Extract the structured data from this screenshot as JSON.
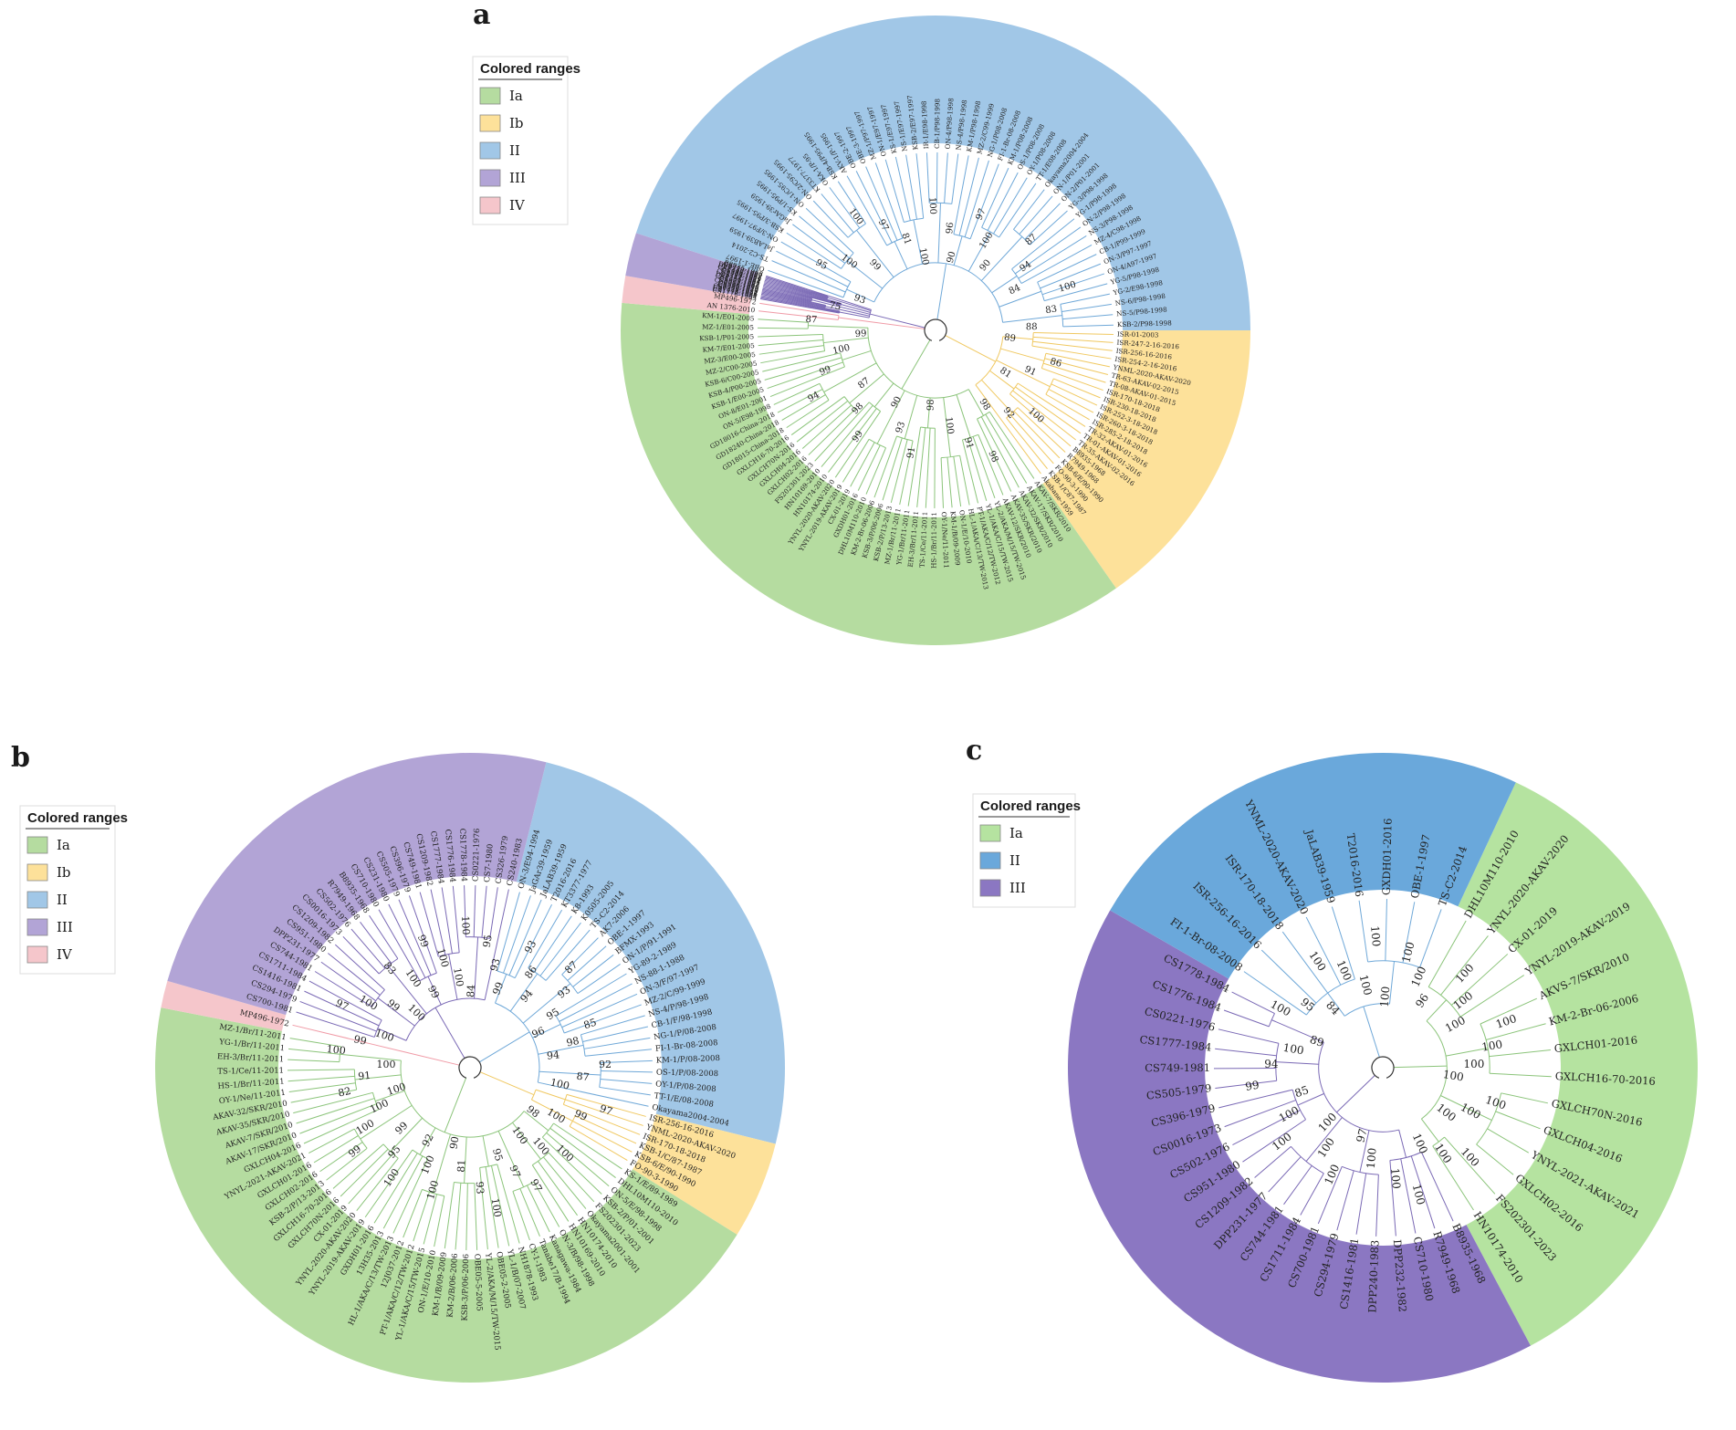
{
  "figure": {
    "legend_title": "Colored ranges",
    "clade_colors": {
      "Ia": "#b5dca0",
      "Ib": "#fde19a",
      "II": "#a1c7e7",
      "III": "#b2a4d6",
      "IV": "#f5c6cb"
    },
    "clade_colors_c": {
      "Ia": "#b5e3a0",
      "II": "#6aa8db",
      "III": "#8b77c2"
    },
    "branch_colors": {
      "Ia": "#8bc47a",
      "Ib": "#f0c860",
      "II": "#6fa8d8",
      "III": "#7a69b5",
      "IV": "#f09aa6"
    },
    "highlight_color": "#e0482a",
    "highlight_label": "FS202301-2023"
  },
  "panels": [
    {
      "id": "a",
      "label": "a",
      "legend": [
        "Ia",
        "Ib",
        "II",
        "III",
        "IV"
      ],
      "sectors": [
        {
          "clade": "II",
          "from": -72,
          "to": 90
        },
        {
          "clade": "Ib",
          "from": 90,
          "to": 145
        },
        {
          "clade": "Ia",
          "from": 145,
          "to": 275
        },
        {
          "clade": "IV",
          "from": 275,
          "to": 280
        },
        {
          "clade": "III",
          "from": 280,
          "to": 288
        }
      ],
      "leaves": [
        {
          "clade": "II",
          "labels": [
            "OBE-1-1997",
            "TS-C2-2014",
            "JaLAB39-1959",
            "ON-3/F97-1997",
            "KSB-3/P95-1995",
            "JaGAr39-1959",
            "KS-1/P95-1995",
            "ON-1/C95-1995",
            "ON-2/C95-1995",
            "KT3377-1977",
            "OKA-1/P-95",
            "KSB-4/P95-1995",
            "AKV-1/P-1995",
            "OBE-2-1997",
            "OBE-3-1997",
            "MZ-1/P97-1997",
            "ON-1/E97-1997",
            "KS-1/E97-1997",
            "NS-1/E97-1997",
            "KSB-2/E97-1997",
            "IR-1/E98-1998",
            "CB-1/P98-1998",
            "ON-4/P98-1998",
            "NS-4/P98-1998",
            "KM-1/P98-1998",
            "MZ-2/C99-1999",
            "NG-1/P08-2008",
            "FI-1-Br-08-2008",
            "KM-1/P08-2008",
            "OS-1/P08-2008",
            "OY-1/P08-2008",
            "TT-1/E08-2008",
            "Okayama2004-2004",
            "ON-1/P01-2001",
            "ON-2/P01-2001",
            "YG-3/P98-1998",
            "YG-1/P98-1998",
            "ON-2/P98-1998",
            "NS-3/P98-1998",
            "MZ-4/C98-1998",
            "CB-1/P99-1999",
            "ON-3/P97-1997",
            "ON-4/A97-1997",
            "YG-5/P98-1998",
            "YG-2/E98-1998",
            "NS-6/P98-1998",
            "NS-5/P98-1998",
            "KSB-2/P98-1998"
          ]
        },
        {
          "clade": "Ib",
          "labels": [
            "ISR-01-2003",
            "ISR-247-2-16-2016",
            "ISR-256-16-2016",
            "ISR-254-2-16-2016",
            "YNML-2020-AKAV-2020",
            "TR-63-AKAV-02-2015",
            "TR-08-AKAV-01-2015",
            "ISR-170-18-2018",
            "ISR-230-18-2018",
            "ISR-252-3-18-2018",
            "ISR-260-3-18-2018",
            "ISR-285-2-18-2018",
            "TR-32-AKAV-01-2016",
            "TR-01-AKAV-01-2016",
            "TR-35-AKAV-02-2016",
            "B8935-1968",
            "R7949-1968",
            "KSB-6/E/90-1990",
            "FO-90-3-1990",
            "KSB-1/C87-1987",
            "Akabane-1959"
          ]
        },
        {
          "clade": "Ia",
          "labels": [
            "AKAV-7/SKR/2010",
            "AKAV-17/SKR/2010",
            "AKAV-32/SKR/2010",
            "AKAV-35/SKR/2010",
            "AKAV-12/SKR/2010",
            "YL-2/AKA/M/15/TW-2015",
            "YL-1/AKA/C/15/TW-2015",
            "PT-1/AKA/C/12/TW-2012",
            "HL-1/AKA/C/13/TW-2013",
            "ON-1/E/10-2010",
            "KM-1/B/09-2009",
            "OY-1/Ne/11-2011",
            "HS-1/Br/11-2011",
            "TS-1/Ce/11-2011",
            "EH-3/Br/11-2011",
            "YG-1/Br/11-2011",
            "MZ-1/Br/11-2011",
            "KSB-2/P/13-2013",
            "KSB-3/P/06-2006",
            "KM-2-Br-06-2006",
            "DHL10M110-2010",
            "GXDH01-2016",
            "CX-01-2019",
            "YNYL-2019-AKAV-2019",
            "YNYL-2020-AKAV-2020",
            "HN10174-2010",
            "HN10169-2010",
            "FS202301-2023",
            "GXLCH02-2016",
            "GXLCH04-2016",
            "GXLCH70N-2016",
            "GXLCH16-70-2016",
            "GD18015-China-2018",
            "GD18240-China-2018",
            "GD18016-China-2018",
            "ON-5/E98-1998",
            "ON-8/E01-2001",
            "KSB-1/E00-2005",
            "KSB-4/P00-2005",
            "KSB-6/C00-2005",
            "MZ-2/C00-2005",
            "MZ-3/E00-2005",
            "KM-7/E01-2005",
            "KSB-1/P01-2005",
            "MZ-1/E01-2005",
            "KM-1/E01-2005"
          ]
        },
        {
          "clade": "IV",
          "labels": [
            "AN 1376-2010",
            "MP496-1972"
          ]
        },
        {
          "clade": "III",
          "labels": [
            "CS1776-1984",
            "CS1777-1984",
            "CS1778-1984",
            "CS0221-1976",
            "CS749-1981",
            "CS505-1979",
            "CS396-1979",
            "CS0016-1973",
            "CS502-1976",
            "CS951-1980",
            "CS1209-1982",
            "DPP231-1977",
            "CS744-1981",
            "CS1711-1984",
            "CS700-1981",
            "CS294-1979",
            "CS1416-1981",
            "DPP240-1983",
            "DPP232-1982",
            "CS710-1980",
            "B8935-1968"
          ]
        }
      ],
      "bootstraps": [
        "90",
        "97",
        "100",
        "90",
        "87",
        "94",
        "84",
        "100",
        "83",
        "88",
        "89",
        "86",
        "91",
        "81",
        "100",
        "92",
        "98",
        "98",
        "91",
        "100",
        "98",
        "91",
        "93",
        "90",
        "99",
        "98",
        "87",
        "94",
        "99",
        "100",
        "99",
        "87",
        "75",
        "93",
        "95",
        "100",
        "99",
        "100",
        "97",
        "81",
        "100",
        "100",
        "96"
      ]
    },
    {
      "id": "b",
      "label": "b",
      "legend": [
        "Ia",
        "Ib",
        "II",
        "III",
        "IV"
      ],
      "sectors": [
        {
          "clade": "II",
          "from": 14,
          "to": 104
        },
        {
          "clade": "Ib",
          "from": 104,
          "to": 122
        },
        {
          "clade": "Ia",
          "from": 122,
          "to": 281
        },
        {
          "clade": "IV",
          "from": 281,
          "to": 286
        },
        {
          "clade": "III",
          "from": 286,
          "to": 374
        }
      ],
      "leaves": [
        {
          "clade": "II",
          "labels": [
            "ON-3/E94-1994",
            "JaGAr39-1959",
            "JaLAB39-1959",
            "T2016-2016",
            "KT3377-1977",
            "K8-1993",
            "K0505-2005",
            "TS-C2-2014",
            "AK7-2006",
            "OBE-1-1997",
            "BFMX-1993",
            "ON-1/P/91-1991",
            "YG-89-2-1989",
            "NS-88-1-1988",
            "ON-3/F/97-1997",
            "MZ-2/C/99-1999",
            "NS-4/P/98-1998",
            "CB-1/F/98-1998",
            "NG-1/P/08-2008",
            "FI-1-Br-08-2008",
            "KM-1/P/08-2008",
            "OS-1/P/08-2008",
            "OY-1/P/08-2008",
            "TT-1/E/08-2008",
            "Okayama2004-2004"
          ]
        },
        {
          "clade": "Ib",
          "labels": [
            "ISR-256-16-2016",
            "YNML-2020-AKAV-2020",
            "ISR-170-18-2018",
            "KSB-1/C/87-1987",
            "KSB-6/E/90-1990",
            "FO-90-3-1990"
          ]
        },
        {
          "clade": "Ia",
          "labels": [
            "KS-1/E/89-1989",
            "DHL10M110-2010",
            "ON-5/E/98-1998",
            "KSB-2/P/01-2001",
            "FS202301-2023",
            "Okayama2001-2001",
            "HN10174-2010",
            "HN10169-2010",
            "ON-3/B/98-1998",
            "Kanagawa-1984",
            "Tanabe17/B-1994",
            "CY-1-1983",
            "NH1878-1993",
            "YL-1/B/07-2007",
            "OBE05-2-2005",
            "YL-2/AKA/M/15/TW-2015",
            "OBE05-5-2005",
            "KSB-3/P/06-2006",
            "KM-2/B/06-2006",
            "KM-1/B/09-2009",
            "ON-1/E/10-2010",
            "YL-1/AKA/C/15/TW-2015",
            "PT-1/AKA/C/12/TW-2012",
            "12J037-2012",
            "HL-1/AKA/C/13/TW-2013",
            "13H35-2013",
            "GXDH01-2016",
            "YNYL-2019-AKAV-2019",
            "YNYL-2020-AKAV-2020",
            "CX-01-2019",
            "GXLCH70N-2016",
            "GXLCH16-70-2016",
            "KSB-2/P/13-2013",
            "GXLCH02-2016",
            "GXLCH01-2016",
            "YNYL-2021-AKAV-2021",
            "GXLCH04-2016",
            "AKAV-17/SKR/2010",
            "AKAV-7/SKR/2010",
            "AKAV-35/SKR/2010",
            "AKAV-32/SKR/2010",
            "OY-1/Ne/11-2011",
            "HS-1/Br/11-2011",
            "TS-1/Ce/11-2011",
            "EH-3/Br/11-2011",
            "YG-1/Br/11-2011",
            "MZ-1/Br/11-2011"
          ]
        },
        {
          "clade": "IV",
          "labels": [
            "MP496-1972"
          ]
        },
        {
          "clade": "III",
          "labels": [
            "CS700-1981",
            "CS294-1979",
            "CS1416-1981",
            "CS1711-1984",
            "CS744-1981",
            "DPP231-1977",
            "CS951-1980",
            "CS1209-1982",
            "CS0016-1973",
            "CS502-1976",
            "R7949-1968",
            "B8935-1968",
            "CS710-1980",
            "CS231-1980",
            "CS505-1979",
            "CS396-1979",
            "CS749-1981",
            "CS1209-1982",
            "CS1777-1984",
            "CS1776-1984",
            "CS1778-1984",
            "CS0221-1976",
            "CS7-1980",
            "CS326-1979",
            "CS240-1983"
          ]
        }
      ],
      "bootstraps": [
        "84",
        "95",
        "93",
        "99",
        "93",
        "86",
        "94",
        "87",
        "93",
        "95",
        "96",
        "85",
        "98",
        "94",
        "92",
        "87",
        "100",
        "97",
        "99",
        "100",
        "98",
        "100",
        "100",
        "100",
        "97",
        "97",
        "95",
        "100",
        "93",
        "81",
        "90",
        "100",
        "100",
        "92",
        "100",
        "95",
        "99",
        "99",
        "100",
        "100",
        "100",
        "82",
        "91",
        "100",
        "100",
        "99",
        "100",
        "97",
        "100",
        "99",
        "100",
        "83",
        "100",
        "99",
        "99",
        "100",
        "100",
        "100"
      ]
    },
    {
      "id": "c",
      "label": "c",
      "legend": [
        "Ia",
        "II",
        "III"
      ],
      "sectors": [
        {
          "clade": "Ia",
          "from": 25,
          "to": 152
        },
        {
          "clade": "III",
          "from": 152,
          "to": 300
        },
        {
          "clade": "II",
          "from": 300,
          "to": 385
        }
      ],
      "leaves": [
        {
          "clade": "Ia",
          "labels": [
            "DHL10M110-2010",
            "YNYL-2020-AKAV-2020",
            "CX-01-2019",
            "YNYL-2019-AKAV-2019",
            "AKVS-7/SKR/2010",
            "KM-2-Br-06-2006",
            "GXLCH01-2016",
            "GXLCH16-70-2016",
            "GXLCH70N-2016",
            "GXLCH04-2016",
            "YNYL-2021-AKAV-2021",
            "GXLCH02-2016",
            "FS202301-2023",
            "HN10174-2010"
          ]
        },
        {
          "clade": "III",
          "labels": [
            "B8935-1968",
            "R7949-1968",
            "CS710-1980",
            "DPP232-1982",
            "DPP240-1983",
            "CS1416-1981",
            "CS294-1979",
            "CS700-1981",
            "CS1711-1984",
            "CS744-1981",
            "DPP231-1977",
            "CS1209-1982",
            "CS951-1980",
            "CS502-1976",
            "CS0016-1973",
            "CS396-1979",
            "CS505-1979",
            "CS749-1981",
            "CS1777-1984",
            "CS0221-1976",
            "CS1776-1984",
            "CS1778-1984"
          ]
        },
        {
          "clade": "II",
          "labels": [
            "FI-1-Br-08-2008",
            "ISR-256-16-2016",
            "ISR-170-18-2018",
            "YNML-2020-AKAV-2020",
            "JaLAB39-1959",
            "T2016-2016",
            "GXDH01-2016",
            "OBE-1-1997",
            "TS-C2-2014"
          ]
        }
      ],
      "bootstraps": [
        "100",
        "100",
        "100",
        "96",
        "100",
        "100",
        "100",
        "100",
        "100",
        "100",
        "100",
        "100",
        "100",
        "100",
        "100",
        "100",
        "100",
        "100",
        "100",
        "100",
        "97",
        "100",
        "100",
        "100",
        "100",
        "100",
        "85",
        "99",
        "94",
        "100",
        "89",
        "100",
        "95",
        "84",
        "100",
        "100",
        "100",
        "100"
      ]
    }
  ]
}
